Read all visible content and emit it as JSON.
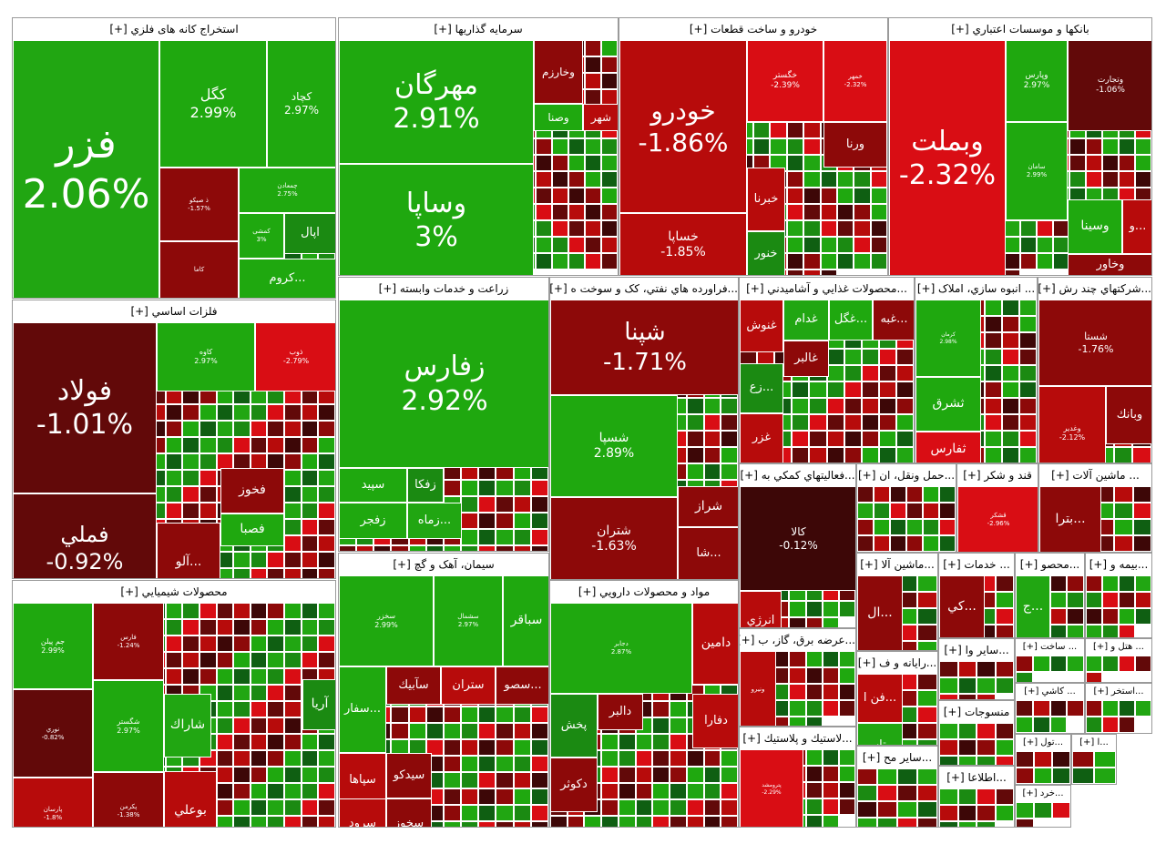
{
  "colors": {
    "g3": "#1fa80f",
    "g2": "#21a612",
    "g1": "#1b8a12",
    "g0": "#0f5f12",
    "r0": "#3d0707",
    "r1": "#620909",
    "r2": "#8d0909",
    "r3": "#b70b0b",
    "r4": "#d90d14"
  },
  "chart_data": {
    "type": "treemap",
    "title": "",
    "sectors": [
      {
        "name": "استخراج کانه های فلزي [+]",
        "tiles": [
          {
            "name": "فزر",
            "pct": "2.06%",
            "value": 2.06
          },
          {
            "name": "كگل",
            "pct": "2.99%",
            "value": 2.99
          },
          {
            "name": "کچاد",
            "pct": "2.97%",
            "value": 2.97
          },
          {
            "name": "ذ صیکو",
            "pct": "-1.57%",
            "value": -1.57
          },
          {
            "name": "چمعادن",
            "pct": "2.75%",
            "value": 2.75
          },
          {
            "name": "کمشی",
            "pct": "3%",
            "value": 3
          },
          {
            "name": "كاما",
            "pct": "",
            "value": -1.6
          },
          {
            "name": "اپال",
            "pct": "",
            "value": 1.4
          },
          {
            "name": "...کروم",
            "pct": "",
            "value": 2.8
          }
        ]
      },
      {
        "name": "سرمايه گذاريها [+]",
        "tiles": [
          {
            "name": "مهرگان",
            "pct": "2.91%",
            "value": 2.91
          },
          {
            "name": "وساپا",
            "pct": "3%",
            "value": 3
          },
          {
            "name": "وخارزم",
            "pct": "",
            "value": -1.5
          },
          {
            "name": "وصنا",
            "pct": "",
            "value": 2.5
          },
          {
            "name": "شهر",
            "pct": "",
            "value": -1.8
          }
        ]
      },
      {
        "name": "خودرو و ساخت قطعات [+]",
        "tiles": [
          {
            "name": "خودرو",
            "pct": "-1.86%",
            "value": -1.86
          },
          {
            "name": "خساپا",
            "pct": "-1.85%",
            "value": -1.85
          },
          {
            "name": "خگستر",
            "pct": "-2.39%",
            "value": -2.39
          },
          {
            "name": "خمهر",
            "pct": "-2.32%",
            "value": -2.32
          },
          {
            "name": "ورنا",
            "pct": "",
            "value": -1.7
          },
          {
            "name": "خبرنا",
            "pct": "",
            "value": -1.9
          },
          {
            "name": "خنور",
            "pct": "",
            "value": 1.5
          }
        ]
      },
      {
        "name": "بانكها و موسسات اعتباري [+]",
        "tiles": [
          {
            "name": "وبملت",
            "pct": "-2.32%",
            "value": -2.32
          },
          {
            "name": "وپارس",
            "pct": "2.97%",
            "value": 2.97
          },
          {
            "name": "وتجارت",
            "pct": "-1.06%",
            "value": -1.06
          },
          {
            "name": "سامان",
            "pct": "2.99%",
            "value": 2.99
          },
          {
            "name": "وسینا",
            "pct": "",
            "value": 2.6
          },
          {
            "name": "...و",
            "pct": "",
            "value": -1.9
          },
          {
            "name": "وخاور",
            "pct": "",
            "value": -1.6
          }
        ]
      },
      {
        "name": "فلزات اساسي [+]",
        "tiles": [
          {
            "name": "فولاد",
            "pct": "-1.01%",
            "value": -1.01
          },
          {
            "name": "فملي",
            "pct": "-0.92%",
            "value": -0.92
          },
          {
            "name": "کاوه",
            "pct": "2.97%",
            "value": 2.97
          },
          {
            "name": "ذوب",
            "pct": "-2.79%",
            "value": -2.79
          },
          {
            "name": "فخوز",
            "pct": "",
            "value": -1.3
          },
          {
            "name": "فصبا",
            "pct": "",
            "value": 2.5
          },
          {
            "name": "...آلو",
            "pct": "",
            "value": -1.2
          }
        ]
      },
      {
        "name": "زراعت و خدمات وابسته [+]",
        "tiles": [
          {
            "name": "زفارس",
            "pct": "2.92%",
            "value": 2.92
          },
          {
            "name": "سپید",
            "pct": "",
            "value": 2.5
          },
          {
            "name": "زفكا",
            "pct": "",
            "value": 1.6
          },
          {
            "name": "زفجر",
            "pct": "",
            "value": 2.5
          },
          {
            "name": "...زماه",
            "pct": "",
            "value": 2.4
          }
        ]
      },
      {
        "name": "...فراورده هاي نفتي، كک و سوخت ه [+]",
        "tiles": [
          {
            "name": "شپنا",
            "pct": "-1.71%",
            "value": -1.71
          },
          {
            "name": "شسپا",
            "pct": "2.89%",
            "value": 2.89
          },
          {
            "name": "شتران",
            "pct": "-1.63%",
            "value": -1.63
          },
          {
            "name": "شراز",
            "pct": "",
            "value": -1.5
          },
          {
            "name": "...شا",
            "pct": "",
            "value": -1.6
          }
        ]
      },
      {
        "name": "...محصولات غذايي و آشاميدني [+]",
        "tiles": [
          {
            "name": "غنوش",
            "pct": "",
            "value": -2.0
          },
          {
            "name": "غدام",
            "pct": "",
            "value": 2.3
          },
          {
            "name": "...غگل",
            "pct": "",
            "value": 2.5
          },
          {
            "name": "...غبه",
            "pct": "",
            "value": -1.4
          },
          {
            "name": "غالبر",
            "pct": "",
            "value": -1.6
          },
          {
            "name": "...زع",
            "pct": "",
            "value": 1.4
          },
          {
            "name": "غزر",
            "pct": "",
            "value": -2.0
          }
        ]
      },
      {
        "name": "... انبوه سازي، املاک [+]",
        "tiles": [
          {
            "name": "کرمان",
            "pct": "2.98%",
            "value": 2.98
          },
          {
            "name": "ثشرق",
            "pct": "",
            "value": 2.5
          },
          {
            "name": "ثفارس",
            "pct": "",
            "value": -2.2
          }
        ]
      },
      {
        "name": "...شركتهاي چند رش [+]",
        "tiles": [
          {
            "name": "شستا",
            "pct": "-1.76%",
            "value": -1.76
          },
          {
            "name": "وبانك",
            "pct": "",
            "value": -1.5
          },
          {
            "name": "وغدیر",
            "pct": "-2.12%",
            "value": -2.12
          }
        ]
      },
      {
        "name": "محصولات شيميايي [+]",
        "tiles": [
          {
            "name": "جم پیلن",
            "pct": "2.99%",
            "value": 2.99
          },
          {
            "name": "فارس",
            "pct": "-1.24%",
            "value": -1.24
          },
          {
            "name": "نوري",
            "pct": "-0.82%",
            "value": -0.82
          },
          {
            "name": "شگستر",
            "pct": "2.97%",
            "value": 2.97
          },
          {
            "name": "پارسان",
            "pct": "-1.8%",
            "value": -1.8
          },
          {
            "name": "پکرمن",
            "pct": "-1.38%",
            "value": -1.38
          },
          {
            "name": "شاراك",
            "pct": "",
            "value": 2.4
          },
          {
            "name": "آريا",
            "pct": "",
            "value": 1.5
          },
          {
            "name": "بوعلي",
            "pct": "",
            "value": -2.1
          }
        ]
      },
      {
        "name": "سيمان، آهک و گچ [+]",
        "tiles": [
          {
            "name": "سخزر",
            "pct": "2.99%",
            "value": 2.99
          },
          {
            "name": "سشمال",
            "pct": "2.97%",
            "value": 2.97
          },
          {
            "name": "سباقر",
            "pct": "",
            "value": 2.5
          },
          {
            "name": "...سفار",
            "pct": "",
            "value": 2.5
          },
          {
            "name": "سآبیك",
            "pct": "",
            "value": -1.6
          },
          {
            "name": "ستران",
            "pct": "",
            "value": -2.1
          },
          {
            "name": "...سصو",
            "pct": "",
            "value": -1.7
          },
          {
            "name": "سپاها",
            "pct": "",
            "value": -2.0
          },
          {
            "name": "سیدكو",
            "pct": "",
            "value": -1.6
          },
          {
            "name": "سرود",
            "pct": "",
            "value": -1.8
          },
          {
            "name": "سخوز",
            "pct": "",
            "value": -1.6
          }
        ]
      },
      {
        "name": "مواد و محصولات دارويي [+]",
        "tiles": [
          {
            "name": "دجابر",
            "pct": "2.87%",
            "value": 2.87
          },
          {
            "name": "دامین",
            "pct": "",
            "value": -2.1
          },
          {
            "name": "دالبر",
            "pct": "",
            "value": -1.5
          },
          {
            "name": "دفارا",
            "pct": "",
            "value": -1.8
          },
          {
            "name": "پخش",
            "pct": "",
            "value": 1.2
          },
          {
            "name": "دكوثر",
            "pct": "",
            "value": -1.4
          }
        ]
      },
      {
        "name": "...فعاليتهاي كمكي به [+]",
        "tiles": [
          {
            "name": "كالا",
            "pct": "-0.12%",
            "value": -0.12
          },
          {
            "name": "انرژي",
            "pct": "",
            "value": -2.0
          }
        ]
      },
      {
        "name": "...حمل ونقل، ان [+]",
        "tiles": []
      },
      {
        "name": "قند و شکر [+]",
        "tiles": [
          {
            "name": "قشکر",
            "pct": "-2.96%",
            "value": -2.96
          }
        ]
      },
      {
        "name": "... ماشين آلات [+]",
        "tiles": [
          {
            "name": "...بترا",
            "pct": "",
            "value": -1.5
          }
        ]
      },
      {
        "name": "...عرضه برق، گاز، ب [+]",
        "tiles": [
          {
            "name": "ونیرو",
            "pct": "",
            "value": -2.0
          }
        ]
      },
      {
        "name": "...ماشين آلا [+]",
        "tiles": [
          {
            "name": "...ال",
            "pct": "",
            "value": -1.5
          }
        ]
      },
      {
        "name": "... خدمات [+]",
        "tiles": [
          {
            "name": "...كي",
            "pct": "",
            "value": -1.6
          }
        ]
      },
      {
        "name": "...محصو [+]",
        "tiles": [
          {
            "name": "...ج",
            "pct": "",
            "value": 2.4
          }
        ]
      },
      {
        "name": "...بيمه و [+]",
        "tiles": []
      },
      {
        "name": "...رايانه و ف [+]",
        "tiles": [
          {
            "name": "...فن ا",
            "pct": "",
            "value": -2.0
          },
          {
            "name": "رتاپ",
            "pct": "",
            "value": 2.3
          }
        ]
      },
      {
        "name": "...ساير وا [+]",
        "tiles": []
      },
      {
        "name": "... ساخت [+]",
        "tiles": []
      },
      {
        "name": "... هتل و [+]",
        "tiles": []
      },
      {
        "name": "...لاستيك و پلاستيك [+]",
        "tiles": [
          {
            "name": "پترومشد",
            "pct": "-2.29%",
            "value": -2.29
          }
        ]
      },
      {
        "name": "...ساير مح [+]",
        "tiles": []
      },
      {
        "name": "منسوجات [+]",
        "tiles": []
      },
      {
        "name": "... كاشي [+]",
        "tiles": []
      },
      {
        "name": "...استخر [+]",
        "tiles": []
      },
      {
        "name": "...اطلاعا [+]",
        "tiles": []
      },
      {
        "name": "...تول [+]",
        "tiles": []
      },
      {
        "name": "...ا [+]",
        "tiles": []
      },
      {
        "name": "...خرد [+]",
        "tiles": []
      }
    ]
  }
}
